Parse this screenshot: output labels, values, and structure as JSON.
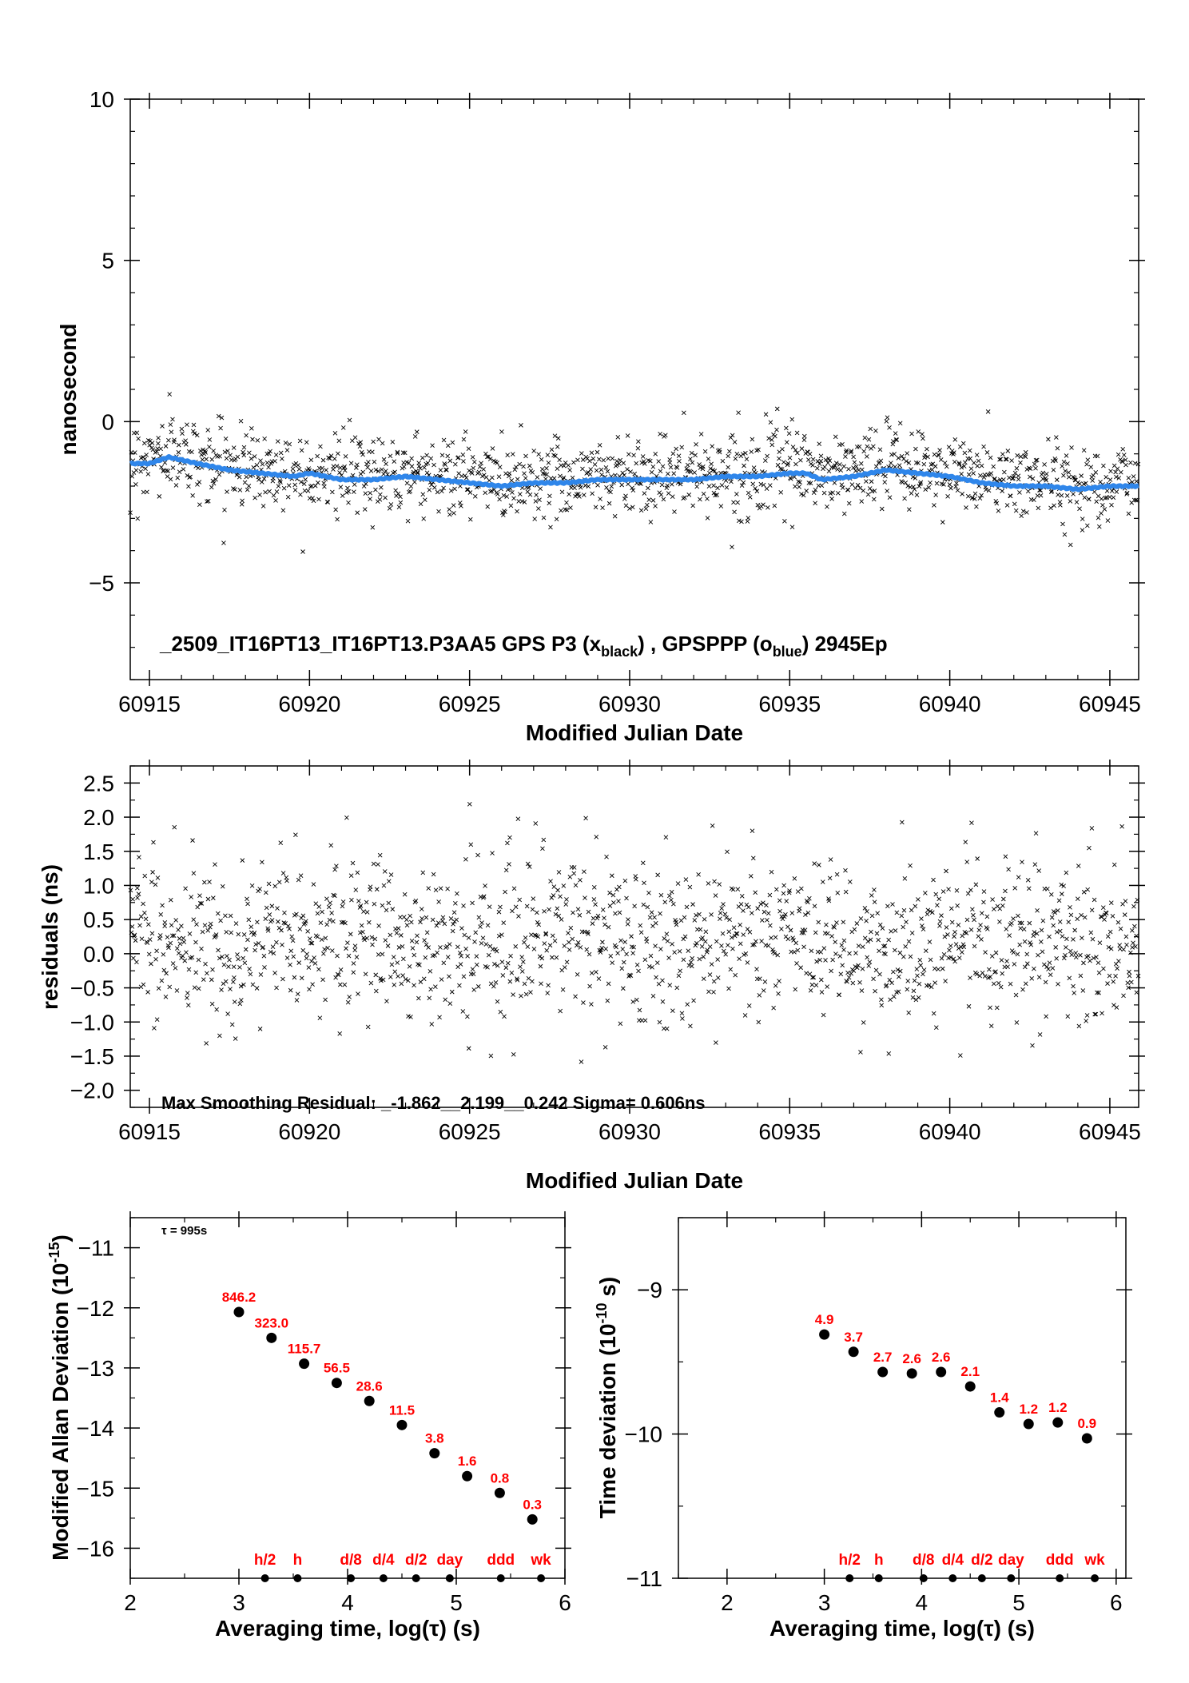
{
  "chart_data": [
    {
      "id": "phase",
      "type": "scatter",
      "xlabel": "Modified Julian Date",
      "ylabel": "nanosecond",
      "xlim": [
        60914.4,
        60945.9
      ],
      "ylim": [
        -8,
        10
      ],
      "xticks": [
        60915,
        60920,
        60925,
        60930,
        60935,
        60940,
        60945
      ],
      "xtick_labels": [
        "60915",
        "60920",
        "60925",
        "60930",
        "60935",
        "60940",
        "60945"
      ],
      "yticks": [
        -5,
        0,
        5,
        10
      ],
      "ytick_labels": [
        "−5",
        "0",
        "5",
        "10"
      ],
      "grid": false,
      "annotation": {
        "text": "_2509_IT16PT13_IT16PT13.P3AA5     GPS P3 (x",
        "sub1": "black",
        "mid": ") ,  GPSPPP (o",
        "sub2": "blue",
        "end": ")  2945Ep"
      },
      "series": [
        {
          "marker": "x",
          "color": "#000000",
          "npoints": 1400,
          "noise_ns": 0.606
        },
        {
          "marker": "o",
          "color": "#2f86ea",
          "x": [
            60914.4,
            60915,
            60915.6,
            60916.5,
            60917.5,
            60918.5,
            60919.5,
            60920,
            60921,
            60922,
            60923,
            60924,
            60925,
            60926,
            60927,
            60928,
            60929,
            60930,
            60931,
            60932,
            60933,
            60934,
            60935,
            60935.5,
            60936,
            60937,
            60938,
            60939,
            60940,
            60941,
            60942,
            60943,
            60944,
            60945,
            60945.9
          ],
          "y": [
            -1.3,
            -1.3,
            -1.1,
            -1.3,
            -1.5,
            -1.6,
            -1.7,
            -1.6,
            -1.8,
            -1.8,
            -1.7,
            -1.8,
            -1.9,
            -2.0,
            -1.9,
            -1.9,
            -1.8,
            -1.8,
            -1.8,
            -1.8,
            -1.7,
            -1.7,
            -1.6,
            -1.6,
            -1.8,
            -1.7,
            -1.5,
            -1.6,
            -1.7,
            -1.9,
            -2.0,
            -2.0,
            -2.1,
            -2.0,
            -2.0
          ]
        }
      ]
    },
    {
      "id": "residuals",
      "type": "scatter",
      "xlabel": "Modified Julian Date",
      "ylabel": "residuals (ns)",
      "xlim": [
        60914.4,
        60945.9
      ],
      "ylim": [
        -2.25,
        2.75
      ],
      "xticks": [
        60915,
        60920,
        60925,
        60930,
        60935,
        60940,
        60945
      ],
      "xtick_labels": [
        "60915",
        "60920",
        "60925",
        "60930",
        "60935",
        "60940",
        "60945"
      ],
      "yticks": [
        -2.0,
        -1.5,
        -1.0,
        -0.5,
        0.0,
        0.5,
        1.0,
        1.5,
        2.0,
        2.5
      ],
      "ytick_labels": [
        "−2.0",
        "−1.5",
        "−1.0",
        "−0.5",
        "0.0",
        "0.5",
        "1.0",
        "1.5",
        "2.0",
        "2.5"
      ],
      "grid": false,
      "annotation": "Max Smoothing Residual: _-1.862__2.199__0.242  Sigma= 0.606ns",
      "min": -1.862,
      "max": 2.199,
      "mean": 0.242,
      "sigma": 0.606,
      "series": [
        {
          "marker": "x",
          "color": "#000000",
          "npoints": 1400
        }
      ]
    },
    {
      "id": "mdev",
      "type": "scatter",
      "xlabel": "Averaging time, log(τ) (s)",
      "ylabel": "Modified Allan Deviation (10",
      "ylabel_sup": "-15",
      "ylabel_end": ")",
      "note": "τ = 995s",
      "xlim": [
        2,
        6
      ],
      "ylim": [
        -16.5,
        -10.5
      ],
      "xticks": [
        2,
        3,
        4,
        5,
        6
      ],
      "xtick_labels": [
        "2",
        "3",
        "4",
        "5",
        "6"
      ],
      "yticks": [
        -16,
        -15,
        -14,
        -13,
        -12,
        -11
      ],
      "ytick_labels": [
        "−16",
        "−15",
        "−14",
        "−13",
        "−12",
        "−11"
      ],
      "x": [
        3.0,
        3.3,
        3.6,
        3.9,
        4.2,
        4.5,
        4.8,
        5.1,
        5.4,
        5.7
      ],
      "y": [
        -12.07,
        -12.5,
        -12.93,
        -13.25,
        -13.55,
        -13.95,
        -14.42,
        -14.8,
        -15.08,
        -15.52
      ],
      "labels": [
        "846.2",
        "323.0",
        "115.7",
        "56.5",
        "28.6",
        "11.5",
        "3.8",
        "1.6",
        "0.8",
        "0.3"
      ],
      "markers": {
        "x": [
          3.24,
          3.54,
          4.03,
          4.33,
          4.63,
          4.94,
          5.41,
          5.78
        ],
        "labels": [
          "h/2",
          "h",
          "d/8",
          "d/4",
          "d/2",
          "day",
          "ddd",
          "wk"
        ]
      }
    },
    {
      "id": "tdev",
      "type": "scatter",
      "xlabel": "Averaging time, log(τ) (s)",
      "ylabel": "Time deviation (10",
      "ylabel_sup": "-10",
      "ylabel_end": " s)",
      "xlim": [
        1.5,
        6.1
      ],
      "ylim": [
        -11,
        -8.5
      ],
      "xticks": [
        2,
        3,
        4,
        5,
        6
      ],
      "xtick_labels": [
        "2",
        "3",
        "4",
        "5",
        "6"
      ],
      "yticks": [
        -11,
        -10,
        -9
      ],
      "ytick_labels": [
        "−11",
        "−10",
        "−9"
      ],
      "x": [
        3.0,
        3.3,
        3.6,
        3.9,
        4.2,
        4.5,
        4.8,
        5.1,
        5.4,
        5.7
      ],
      "y": [
        -9.31,
        -9.43,
        -9.57,
        -9.58,
        -9.57,
        -9.67,
        -9.85,
        -9.93,
        -9.92,
        -10.03
      ],
      "labels": [
        "4.9",
        "3.7",
        "2.7",
        "2.6",
        "2.6",
        "2.1",
        "1.4",
        "1.2",
        "1.2",
        "0.9"
      ],
      "markers": {
        "x": [
          3.26,
          3.56,
          4.02,
          4.32,
          4.62,
          4.92,
          5.42,
          5.78
        ],
        "labels": [
          "h/2",
          "h",
          "d/8",
          "d/4",
          "d/2",
          "day",
          "ddd",
          "wk"
        ]
      }
    }
  ]
}
